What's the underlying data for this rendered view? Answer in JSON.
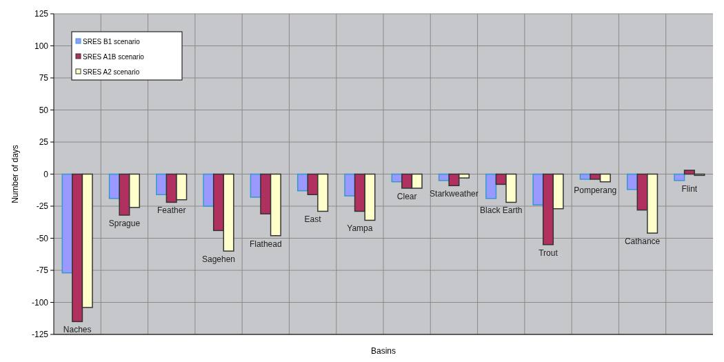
{
  "chart_data": {
    "type": "bar",
    "xlabel": "Basins",
    "ylabel": "Number of days",
    "categories": [
      "Naches",
      "Sprague",
      "Feather",
      "Sagehen",
      "Flathead",
      "East",
      "Yampa",
      "Clear",
      "Starkweather",
      "Black Earth",
      "Trout",
      "Pomperang",
      "Cathance",
      "Flint"
    ],
    "series": [
      {
        "name": "SRES B1 scenario",
        "color": "#9999ff",
        "values": [
          -77,
          -19,
          -16,
          -25,
          -18,
          -13,
          -17,
          -6,
          -5,
          -19,
          -24,
          -4,
          -12,
          -5
        ]
      },
      {
        "name": "SRES A1B scenario",
        "color": "#b03060",
        "values": [
          -115,
          -32,
          -22,
          -44,
          -31,
          -16,
          -29,
          -11,
          -9,
          -8,
          -55,
          -4,
          -28,
          3
        ]
      },
      {
        "name": "SRES A2 scenario",
        "color": "#ffffcc",
        "values": [
          -104,
          -26,
          -20,
          -60,
          -48,
          -29,
          -36,
          -11,
          -3,
          -22,
          -27,
          -6,
          -46,
          -1
        ]
      }
    ],
    "ylim": [
      -125,
      125
    ],
    "yticks": [
      -125,
      -100,
      -75,
      -50,
      -25,
      0,
      25,
      50,
      75,
      100,
      125
    ],
    "grid": true,
    "legend": "top left"
  }
}
